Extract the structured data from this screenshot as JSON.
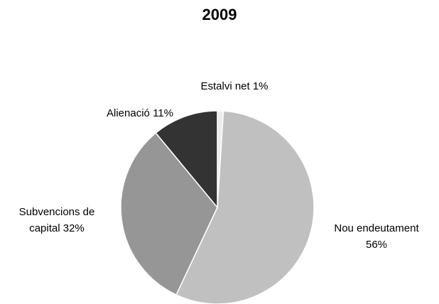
{
  "chart_data": {
    "type": "pie",
    "title": "2009",
    "categories": [
      "Estalvi net",
      "Nou endeutament",
      "Subvencions de capital",
      "Alienació"
    ],
    "values": [
      1,
      56,
      32,
      11
    ],
    "value_labels": [
      "1%",
      "56%",
      "32%",
      "11%"
    ],
    "colors": [
      "#ececec",
      "#c0c0c0",
      "#969696",
      "#333333"
    ]
  }
}
